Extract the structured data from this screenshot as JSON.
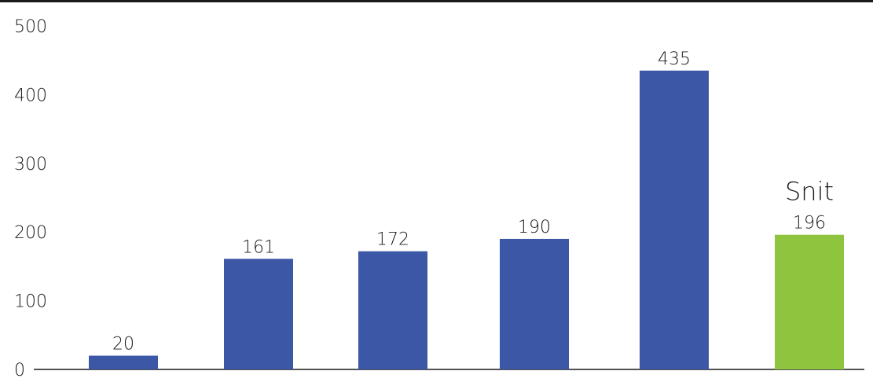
{
  "chart_data": {
    "type": "bar",
    "categories": [
      "",
      "",
      "",
      "",
      "",
      ""
    ],
    "values": [
      20,
      161,
      172,
      190,
      435,
      196
    ],
    "value_labels": [
      "20",
      "161",
      "172",
      "190",
      "435",
      "196"
    ],
    "ylim": [
      0,
      500
    ],
    "yticks": [
      0,
      100,
      200,
      300,
      400,
      500
    ],
    "ytick_labels": [
      "0",
      "100",
      "200",
      "300",
      "400",
      "500"
    ],
    "grid": false,
    "colors": [
      "#3b57a6",
      "#3b57a6",
      "#3b57a6",
      "#3b57a6",
      "#3b57a6",
      "#8fc43f"
    ],
    "highlight": {
      "index": 5,
      "annotation": "Snit"
    }
  }
}
